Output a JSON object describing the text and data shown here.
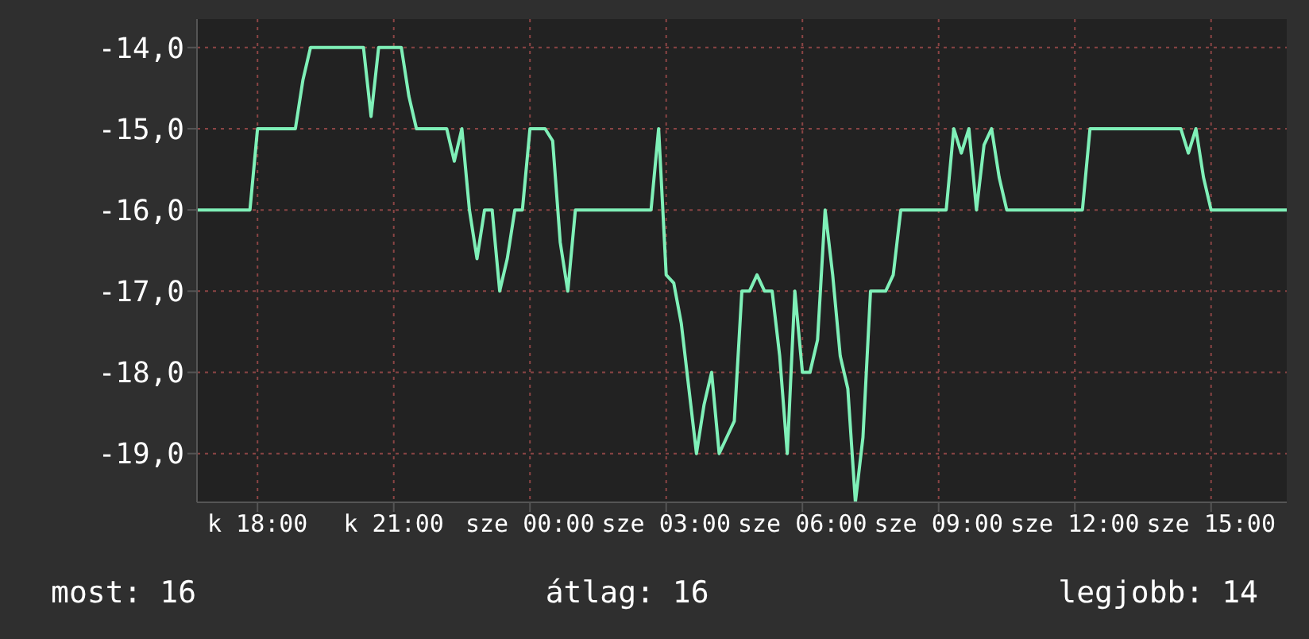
{
  "chart_data": {
    "type": "line",
    "ylim": [
      -19.6,
      -13.65
    ],
    "categories": [
      null,
      null,
      null,
      null,
      null,
      null,
      null,
      null,
      "k 18:00",
      null,
      null,
      null,
      null,
      null,
      null,
      null,
      null,
      null,
      null,
      null,
      null,
      null,
      null,
      null,
      null,
      null,
      "k 21:00",
      null,
      null,
      null,
      null,
      null,
      null,
      null,
      null,
      null,
      null,
      null,
      null,
      null,
      null,
      null,
      null,
      null,
      "sze 00:00",
      null,
      null,
      null,
      null,
      null,
      null,
      null,
      null,
      null,
      null,
      null,
      null,
      null,
      null,
      null,
      null,
      null,
      "sze 03:00",
      null,
      null,
      null,
      null,
      null,
      null,
      null,
      null,
      null,
      null,
      null,
      null,
      null,
      null,
      null,
      null,
      null,
      "sze 06:00",
      null,
      null,
      null,
      null,
      null,
      null,
      null,
      null,
      null,
      null,
      null,
      null,
      null,
      null,
      null,
      null,
      null,
      "sze 09:00",
      null,
      null,
      null,
      null,
      null,
      null,
      null,
      null,
      null,
      null,
      null,
      null,
      null,
      null,
      null,
      null,
      null,
      "sze 12:00",
      null,
      null,
      null,
      null,
      null,
      null,
      null,
      null,
      null,
      null,
      null,
      null,
      null,
      null,
      null,
      null,
      null,
      "sze 15:00",
      null,
      null,
      null,
      null,
      null,
      null,
      null,
      null,
      null,
      null
    ],
    "yticks": [
      {
        "value": -19,
        "label": "-19,0"
      },
      {
        "value": -18,
        "label": "-18,0"
      },
      {
        "value": -17,
        "label": "-17,0"
      },
      {
        "value": -16,
        "label": "-16,0"
      },
      {
        "value": -15,
        "label": "-15,0"
      },
      {
        "value": -14,
        "label": "-14,0"
      }
    ],
    "grid": true,
    "marker": "none",
    "line_style": "solid",
    "annotations": [
      "most: 16",
      "átlag: 16",
      "legjobb: 14"
    ],
    "series": [
      {
        "color": "#7ff0b8",
        "values": [
          -16,
          -16,
          -16,
          -16,
          -16,
          -16,
          -16,
          -16,
          -15,
          -15,
          -15,
          -15,
          -15,
          -15,
          -14.4,
          -14,
          -14,
          -14,
          -14,
          -14,
          -14,
          -14,
          -14,
          -14.85,
          -14,
          -14,
          -14,
          -14,
          -14.6,
          -15,
          -15,
          -15,
          -15,
          -15,
          -15.4,
          -15,
          -16,
          -16.6,
          -16,
          -16,
          -17,
          -16.6,
          -16,
          -16,
          -15,
          -15,
          -15,
          -15.15,
          -16.4,
          -17,
          -16,
          -16,
          -16,
          -16,
          -16,
          -16,
          -16,
          -16,
          -16,
          -16,
          -16,
          -15,
          -16.8,
          -16.9,
          -17.4,
          -18.2,
          -19,
          -18.4,
          -18,
          -19,
          -18.8,
          -18.6,
          -17,
          -17,
          -16.8,
          -17,
          -17,
          -17.8,
          -19,
          -17,
          -18,
          -18,
          -17.6,
          -16,
          -16.8,
          -17.8,
          -18.2,
          -19.6,
          -18.8,
          -17,
          -17,
          -17,
          -16.8,
          -16,
          -16,
          -16,
          -16,
          -16,
          -16,
          -16,
          -15,
          -15.3,
          -15,
          -16,
          -15.2,
          -15,
          -15.6,
          -16,
          -16,
          -16,
          -16,
          -16,
          -16,
          -16,
          -16,
          -16,
          -16,
          -16,
          -15,
          -15,
          -15,
          -15,
          -15,
          -15,
          -15,
          -15,
          -15,
          -15,
          -15,
          -15,
          -15,
          -15.3,
          -15,
          -15.6,
          -16,
          -16,
          -16,
          -16,
          -16,
          -16,
          -16,
          -16,
          -16,
          -16,
          -16
        ]
      }
    ]
  }
}
